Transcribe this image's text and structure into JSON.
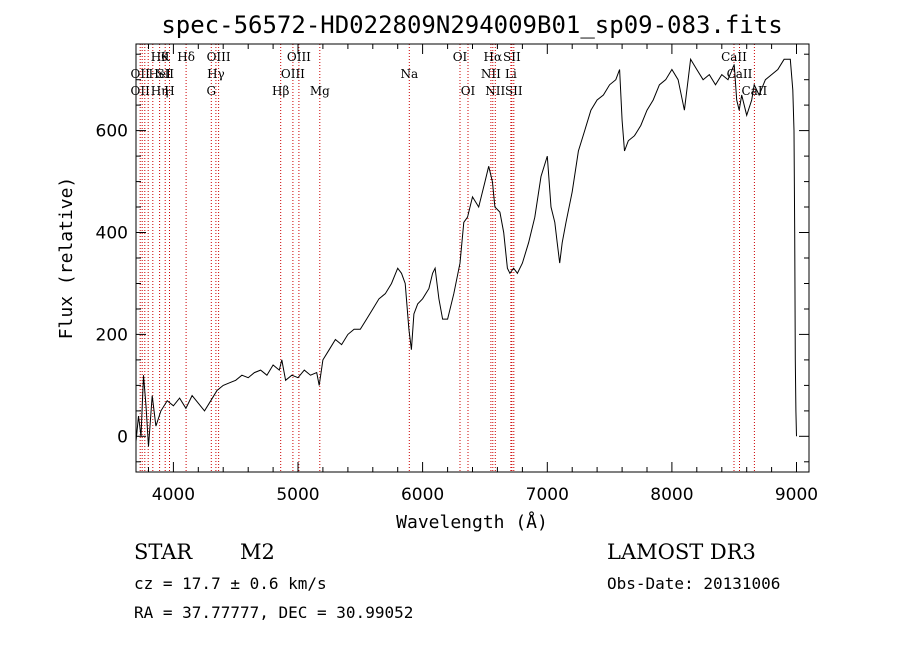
{
  "chart_data": {
    "type": "line",
    "title": "spec-56572-HD022809N294009B01_sp09-083.fits",
    "xlabel": "Wavelength (Å)",
    "ylabel": "Flux (relative)",
    "xlim": [
      3700,
      9100
    ],
    "ylim": [
      -70,
      770
    ],
    "xticks": [
      4000,
      5000,
      6000,
      7000,
      8000,
      9000
    ],
    "yticks": [
      0,
      200,
      400,
      600
    ],
    "series": [
      {
        "name": "flux",
        "x": [
          3700,
          3720,
          3740,
          3760,
          3780,
          3800,
          3830,
          3860,
          3900,
          3950,
          4000,
          4050,
          4100,
          4150,
          4200,
          4250,
          4300,
          4350,
          4400,
          4450,
          4500,
          4550,
          4600,
          4650,
          4700,
          4750,
          4800,
          4850,
          4870,
          4900,
          4950,
          5000,
          5050,
          5100,
          5150,
          5170,
          5200,
          5250,
          5300,
          5350,
          5400,
          5450,
          5500,
          5550,
          5600,
          5650,
          5700,
          5750,
          5800,
          5830,
          5860,
          5890,
          5910,
          5930,
          5960,
          6000,
          6050,
          6080,
          6100,
          6130,
          6160,
          6200,
          6250,
          6300,
          6330,
          6360,
          6400,
          6450,
          6500,
          6530,
          6560,
          6580,
          6620,
          6650,
          6680,
          6700,
          6730,
          6760,
          6800,
          6850,
          6900,
          6950,
          7000,
          7030,
          7060,
          7080,
          7100,
          7120,
          7150,
          7200,
          7250,
          7300,
          7350,
          7400,
          7450,
          7500,
          7550,
          7580,
          7600,
          7620,
          7650,
          7700,
          7750,
          7800,
          7850,
          7900,
          7950,
          8000,
          8050,
          8100,
          8150,
          8200,
          8250,
          8300,
          8350,
          8400,
          8450,
          8500,
          8520,
          8540,
          8560,
          8600,
          8640,
          8660,
          8700,
          8750,
          8800,
          8850,
          8900,
          8950,
          8970,
          8980,
          8985,
          8990,
          8995,
          9000
        ],
        "y": [
          -10,
          40,
          0,
          120,
          60,
          -20,
          80,
          20,
          50,
          70,
          60,
          75,
          55,
          80,
          65,
          50,
          70,
          90,
          100,
          105,
          110,
          120,
          115,
          125,
          130,
          120,
          140,
          130,
          150,
          110,
          120,
          115,
          130,
          120,
          125,
          100,
          150,
          170,
          190,
          180,
          200,
          210,
          210,
          230,
          250,
          270,
          280,
          300,
          330,
          320,
          300,
          210,
          170,
          240,
          260,
          270,
          290,
          320,
          330,
          270,
          230,
          230,
          280,
          340,
          420,
          430,
          470,
          450,
          500,
          530,
          500,
          450,
          440,
          400,
          330,
          320,
          330,
          320,
          340,
          380,
          430,
          510,
          550,
          450,
          420,
          380,
          340,
          380,
          420,
          480,
          560,
          600,
          640,
          660,
          670,
          690,
          700,
          720,
          620,
          560,
          580,
          590,
          610,
          640,
          660,
          690,
          700,
          720,
          700,
          640,
          740,
          720,
          700,
          710,
          690,
          710,
          700,
          730,
          660,
          640,
          670,
          630,
          660,
          690,
          670,
          700,
          710,
          720,
          740,
          740,
          680,
          600,
          400,
          150,
          50,
          0
        ]
      }
    ],
    "line_marks": [
      {
        "wl": 3734,
        "labels": [
          "",
          "OII",
          "OII"
        ]
      },
      {
        "wl": 3750,
        "labels": [
          "",
          "",
          ""
        ]
      },
      {
        "wl": 3771,
        "labels": [
          "",
          "",
          ""
        ]
      },
      {
        "wl": 3798,
        "labels": [
          "",
          "",
          ""
        ]
      },
      {
        "wl": 3835,
        "labels": [
          "",
          "",
          ""
        ]
      },
      {
        "wl": 3889,
        "labels": [
          "Hθ",
          "HeI",
          "Hη"
        ]
      },
      {
        "wl": 3934,
        "labels": [
          "K",
          "SII",
          ""
        ]
      },
      {
        "wl": 3969,
        "labels": [
          "",
          "",
          "H"
        ]
      },
      {
        "wl": 4102,
        "labels": [
          "Hδ",
          "",
          ""
        ]
      },
      {
        "wl": 4304,
        "labels": [
          "",
          "",
          "G"
        ]
      },
      {
        "wl": 4341,
        "labels": [
          "",
          "Hγ",
          ""
        ]
      },
      {
        "wl": 4363,
        "labels": [
          "OIII",
          "",
          ""
        ]
      },
      {
        "wl": 4861,
        "labels": [
          "",
          "",
          "Hβ"
        ]
      },
      {
        "wl": 4959,
        "labels": [
          "",
          "OIII",
          ""
        ]
      },
      {
        "wl": 5007,
        "labels": [
          "OIII",
          "",
          ""
        ]
      },
      {
        "wl": 5175,
        "labels": [
          "",
          "",
          "Mg"
        ]
      },
      {
        "wl": 5893,
        "labels": [
          "",
          "Na",
          ""
        ]
      },
      {
        "wl": 6300,
        "labels": [
          "OI",
          "",
          ""
        ]
      },
      {
        "wl": 6364,
        "labels": [
          "",
          "",
          "OI"
        ]
      },
      {
        "wl": 6548,
        "labels": [
          "",
          "NII",
          ""
        ]
      },
      {
        "wl": 6563,
        "labels": [
          "Hα",
          "",
          ""
        ]
      },
      {
        "wl": 6583,
        "labels": [
          "",
          "",
          "NII"
        ]
      },
      {
        "wl": 6708,
        "labels": [
          "",
          "Li",
          ""
        ]
      },
      {
        "wl": 6716,
        "labels": [
          "SII",
          "",
          ""
        ]
      },
      {
        "wl": 6731,
        "labels": [
          "",
          "",
          "SII"
        ]
      },
      {
        "wl": 8498,
        "labels": [
          "CaII",
          "",
          ""
        ]
      },
      {
        "wl": 8542,
        "labels": [
          "",
          "CaII",
          ""
        ]
      },
      {
        "wl": 8662,
        "labels": [
          "",
          "",
          "CaII"
        ]
      }
    ]
  },
  "info": {
    "object_class": "STAR",
    "subclass": "M2",
    "survey": "LAMOST DR3",
    "redshift": "cz = 17.7 ± 0.6 km/s",
    "obs_date": "Obs-Date: 20131006",
    "coordinates": "RA =  37.77777, DEC =  30.99052"
  },
  "colors": {
    "line": "#000000",
    "marker": "#cc0000",
    "axis": "#000000"
  }
}
